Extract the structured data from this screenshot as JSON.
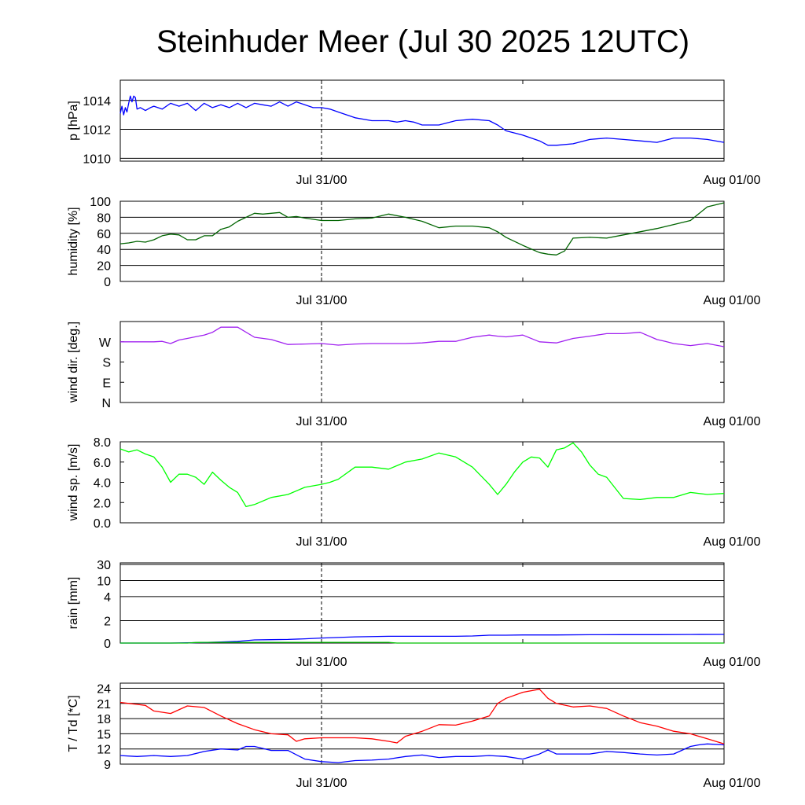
{
  "title": "Steinhuder Meer (Jul 30 2025 12UTC)",
  "chart_data": [
    {
      "type": "line",
      "ylabel": "p [hPa]",
      "x_ticks": [
        "Jul 31/00",
        "Aug 01/00"
      ],
      "x_range_hours": [
        0,
        36
      ],
      "now_hours": 12,
      "ylim": [
        1009.8,
        1015.4
      ],
      "yticks": [
        {
          "v": 1010,
          "label": "1010"
        },
        {
          "v": 1012,
          "label": "1012"
        },
        {
          "v": 1014,
          "label": "1014"
        }
      ],
      "grid": true,
      "series": [
        {
          "color": "#0000ff",
          "x": [
            0,
            0.1,
            0.2,
            0.3,
            0.4,
            0.5,
            0.6,
            0.7,
            0.8,
            0.9,
            1,
            1.2,
            1.5,
            1.8,
            2,
            2.5,
            3,
            3.5,
            4,
            4.5,
            5,
            5.5,
            6,
            6.5,
            7,
            7.5,
            8,
            8.5,
            9,
            9.5,
            10,
            10.5,
            11,
            11.5,
            12,
            12.5,
            13,
            14,
            15,
            16,
            16.5,
            17,
            17.5,
            18,
            19,
            20,
            21,
            22,
            22.5,
            23,
            24,
            25,
            25.5,
            26,
            27,
            28,
            29,
            30,
            31,
            32,
            33,
            34,
            35,
            36
          ],
          "y": [
            1013.1,
            1013.6,
            1013.0,
            1013.5,
            1013.2,
            1013.8,
            1014.3,
            1013.9,
            1014.3,
            1014.2,
            1013.4,
            1013.5,
            1013.3,
            1013.5,
            1013.6,
            1013.4,
            1013.8,
            1013.6,
            1013.8,
            1013.3,
            1013.8,
            1013.5,
            1013.7,
            1013.5,
            1013.8,
            1013.5,
            1013.8,
            1013.7,
            1013.6,
            1013.9,
            1013.6,
            1013.9,
            1013.7,
            1013.5,
            1013.5,
            1013.4,
            1013.2,
            1012.8,
            1012.6,
            1012.6,
            1012.5,
            1012.6,
            1012.5,
            1012.3,
            1012.3,
            1012.6,
            1012.7,
            1012.6,
            1012.3,
            1011.9,
            1011.6,
            1011.2,
            1010.9,
            1010.9,
            1011.0,
            1011.3,
            1011.4,
            1011.3,
            1011.2,
            1011.1,
            1011.4,
            1011.4,
            1011.3,
            1011.1
          ]
        }
      ]
    },
    {
      "type": "line",
      "ylabel": "humidity [%]",
      "x_ticks": [
        "Jul 31/00",
        "Aug 01/00"
      ],
      "x_range_hours": [
        0,
        36
      ],
      "now_hours": 12,
      "ylim": [
        0,
        100
      ],
      "yticks": [
        {
          "v": 0,
          "label": "0"
        },
        {
          "v": 20,
          "label": "20"
        },
        {
          "v": 40,
          "label": "40"
        },
        {
          "v": 60,
          "label": "60"
        },
        {
          "v": 80,
          "label": "80"
        },
        {
          "v": 100,
          "label": "100"
        }
      ],
      "grid": true,
      "series": [
        {
          "color": "#006400",
          "x": [
            0,
            0.5,
            1,
            1.5,
            2,
            2.5,
            3,
            3.5,
            4,
            4.5,
            5,
            5.5,
            6,
            6.5,
            7,
            8,
            8.5,
            9,
            9.5,
            10,
            10.5,
            11,
            12,
            13,
            14,
            15,
            16,
            17,
            18,
            19,
            20,
            21,
            22,
            22.5,
            23,
            24,
            25,
            25.5,
            26,
            26.5,
            27,
            28,
            29,
            30,
            31,
            32,
            33,
            34,
            35,
            36
          ],
          "y": [
            47,
            48,
            50,
            49,
            52,
            57,
            59,
            58,
            52,
            52,
            57,
            57,
            65,
            68,
            75,
            85,
            84,
            85,
            86,
            80,
            81,
            79,
            76,
            76,
            78,
            79,
            84,
            80,
            75,
            67,
            69,
            69,
            67,
            62,
            55,
            45,
            36,
            34,
            33,
            38,
            54,
            55,
            54,
            58,
            62,
            66,
            71,
            76,
            93,
            98
          ]
        }
      ]
    },
    {
      "type": "line",
      "ylabel": "wind dir. [deg.]",
      "x_ticks": [
        "Jul 31/00",
        "Aug 01/00"
      ],
      "x_range_hours": [
        0,
        36
      ],
      "now_hours": 12,
      "ylim": [
        0,
        360
      ],
      "yticks": [
        {
          "v": 0,
          "label": "N"
        },
        {
          "v": 90,
          "label": "E"
        },
        {
          "v": 180,
          "label": "S"
        },
        {
          "v": 270,
          "label": "W"
        }
      ],
      "grid": false,
      "series": [
        {
          "color": "#a020f0",
          "x": [
            0,
            1,
            2,
            2.5,
            3,
            3.5,
            4,
            5,
            5.5,
            6,
            7,
            8,
            9,
            10,
            11,
            12,
            13,
            14,
            15,
            16,
            17,
            18,
            19,
            20,
            21,
            22,
            22.5,
            23,
            24,
            25,
            26,
            27,
            28,
            29,
            30,
            31,
            32,
            32.5,
            33,
            34,
            35,
            36
          ],
          "y": [
            270,
            270,
            270,
            272,
            262,
            278,
            285,
            300,
            312,
            335,
            335,
            290,
            280,
            258,
            260,
            262,
            255,
            260,
            262,
            262,
            262,
            265,
            272,
            272,
            290,
            300,
            295,
            292,
            300,
            270,
            265,
            285,
            295,
            306,
            306,
            312,
            280,
            272,
            262,
            253,
            262,
            248
          ]
        }
      ]
    },
    {
      "type": "line",
      "ylabel": "wind sp. [m/s]",
      "x_ticks": [
        "Jul 31/00",
        "Aug 01/00"
      ],
      "x_range_hours": [
        0,
        36
      ],
      "now_hours": 12,
      "ylim": [
        0,
        8
      ],
      "yticks": [
        {
          "v": 0,
          "label": "0.0"
        },
        {
          "v": 2,
          "label": "2.0"
        },
        {
          "v": 4,
          "label": "4.0"
        },
        {
          "v": 6,
          "label": "6.0"
        },
        {
          "v": 8,
          "label": "8.0"
        }
      ],
      "grid": false,
      "series": [
        {
          "color": "#00ff00",
          "x": [
            0,
            0.5,
            1,
            1.5,
            2,
            2.5,
            3,
            3.5,
            4,
            4.5,
            5,
            5.5,
            6,
            6.5,
            7,
            7.5,
            8,
            9,
            10,
            11,
            12,
            12.5,
            13,
            14,
            15,
            16,
            17,
            18,
            19,
            20,
            21,
            22,
            22.5,
            23,
            23.5,
            24,
            24.5,
            25,
            25.5,
            26,
            26.5,
            27,
            27.5,
            28,
            28.5,
            29,
            30,
            31,
            32,
            33,
            34,
            35,
            36
          ],
          "y": [
            7.3,
            7.0,
            7.2,
            6.8,
            6.5,
            5.5,
            4.0,
            4.8,
            4.8,
            4.5,
            3.8,
            5.0,
            4.2,
            3.5,
            3.0,
            1.6,
            1.8,
            2.5,
            2.8,
            3.5,
            3.8,
            4.0,
            4.3,
            5.5,
            5.5,
            5.3,
            6.0,
            6.3,
            6.9,
            6.5,
            5.5,
            3.8,
            2.8,
            3.8,
            5.0,
            6.0,
            6.5,
            6.4,
            5.5,
            7.2,
            7.4,
            7.9,
            7.0,
            5.7,
            4.8,
            4.5,
            2.4,
            2.3,
            2.5,
            2.5,
            3.0,
            2.8,
            2.9
          ]
        }
      ]
    },
    {
      "type": "area",
      "ylabel": "rain [mm]",
      "x_ticks": [
        "Jul 31/00",
        "Aug 01/00"
      ],
      "x_range_hours": [
        0,
        36
      ],
      "now_hours": 12,
      "ylim": [
        0,
        30
      ],
      "scale": "nonlinear",
      "yticks": [
        {
          "v": 0,
          "label": "0"
        },
        {
          "v": 2,
          "label": "2"
        },
        {
          "v": 4,
          "label": "4"
        },
        {
          "v": 10,
          "label": "10"
        },
        {
          "v": 30,
          "label": "30"
        }
      ],
      "grid": true,
      "series": [
        {
          "color": "#0000ff",
          "x": [
            0,
            3,
            4,
            5,
            6,
            7,
            8,
            9,
            10,
            11,
            12,
            13,
            14,
            16,
            18,
            20,
            21,
            22,
            23,
            24,
            26,
            28,
            30,
            32,
            34,
            36
          ],
          "y": [
            0,
            0,
            0.02,
            0.05,
            0.1,
            0.15,
            0.28,
            0.3,
            0.32,
            0.38,
            0.45,
            0.5,
            0.55,
            0.6,
            0.6,
            0.6,
            0.63,
            0.7,
            0.7,
            0.72,
            0.72,
            0.74,
            0.75,
            0.75,
            0.76,
            0.77
          ]
        },
        {
          "color": "#00c000",
          "x": [
            0,
            4,
            4.5,
            5,
            16,
            16.5,
            20,
            25,
            25.5,
            36
          ],
          "y": [
            0,
            0,
            0.05,
            0.06,
            0.06,
            0,
            0,
            0,
            0,
            0
          ]
        }
      ]
    },
    {
      "type": "line",
      "ylabel": "T / Td [*C]",
      "x_ticks": [
        "Jul 31/00",
        "Aug 01/00"
      ],
      "x_range_hours": [
        0,
        36
      ],
      "now_hours": 12,
      "ylim": [
        9,
        25
      ],
      "yticks": [
        {
          "v": 9,
          "label": "9"
        },
        {
          "v": 12,
          "label": "12"
        },
        {
          "v": 15,
          "label": "15"
        },
        {
          "v": 18,
          "label": "18"
        },
        {
          "v": 21,
          "label": "21"
        },
        {
          "v": 24,
          "label": "24"
        }
      ],
      "grid": true,
      "series": [
        {
          "name": "T",
          "color": "#ff0000",
          "x": [
            0,
            0.5,
            1,
            1.5,
            2,
            3,
            4,
            5,
            6,
            7,
            8,
            9,
            10,
            10.5,
            11,
            12,
            13,
            14,
            15,
            16,
            16.5,
            17,
            18,
            19,
            20,
            21,
            22,
            22.5,
            23,
            24,
            25,
            25.5,
            26,
            27,
            28,
            29,
            30,
            31,
            32,
            33,
            34,
            35,
            36
          ],
          "y": [
            21.2,
            21.0,
            20.8,
            20.6,
            19.5,
            19.0,
            20.5,
            20.2,
            18.5,
            17.0,
            15.8,
            15.0,
            14.8,
            13.5,
            14.0,
            14.2,
            14.2,
            14.2,
            14.0,
            13.5,
            13.2,
            14.5,
            15.5,
            16.8,
            16.7,
            17.5,
            18.5,
            21.0,
            22.0,
            23.2,
            23.8,
            22.0,
            21.0,
            20.3,
            20.5,
            20.0,
            18.5,
            17.2,
            16.5,
            15.5,
            15.0,
            14.0,
            13.0
          ]
        },
        {
          "name": "Td",
          "color": "#0000ff",
          "x": [
            0,
            1,
            2,
            3,
            4,
            5,
            6,
            7,
            7.5,
            8,
            9,
            10,
            11,
            12,
            13,
            14,
            15,
            16,
            17,
            18,
            19,
            20,
            21,
            22,
            23,
            24,
            25,
            25.5,
            26,
            27,
            28,
            29,
            30,
            31,
            32,
            33,
            34,
            34.5,
            35,
            36
          ],
          "y": [
            10.7,
            10.5,
            10.7,
            10.5,
            10.7,
            11.5,
            12.0,
            11.8,
            12.5,
            12.5,
            11.7,
            11.7,
            10.0,
            9.5,
            9.3,
            9.7,
            9.8,
            10.0,
            10.5,
            10.8,
            10.3,
            10.5,
            10.5,
            10.7,
            10.5,
            10.0,
            11.0,
            11.8,
            11.0,
            11.0,
            11.0,
            11.5,
            11.3,
            11.0,
            10.8,
            11.0,
            12.5,
            12.8,
            13.0,
            12.8
          ]
        }
      ]
    }
  ]
}
